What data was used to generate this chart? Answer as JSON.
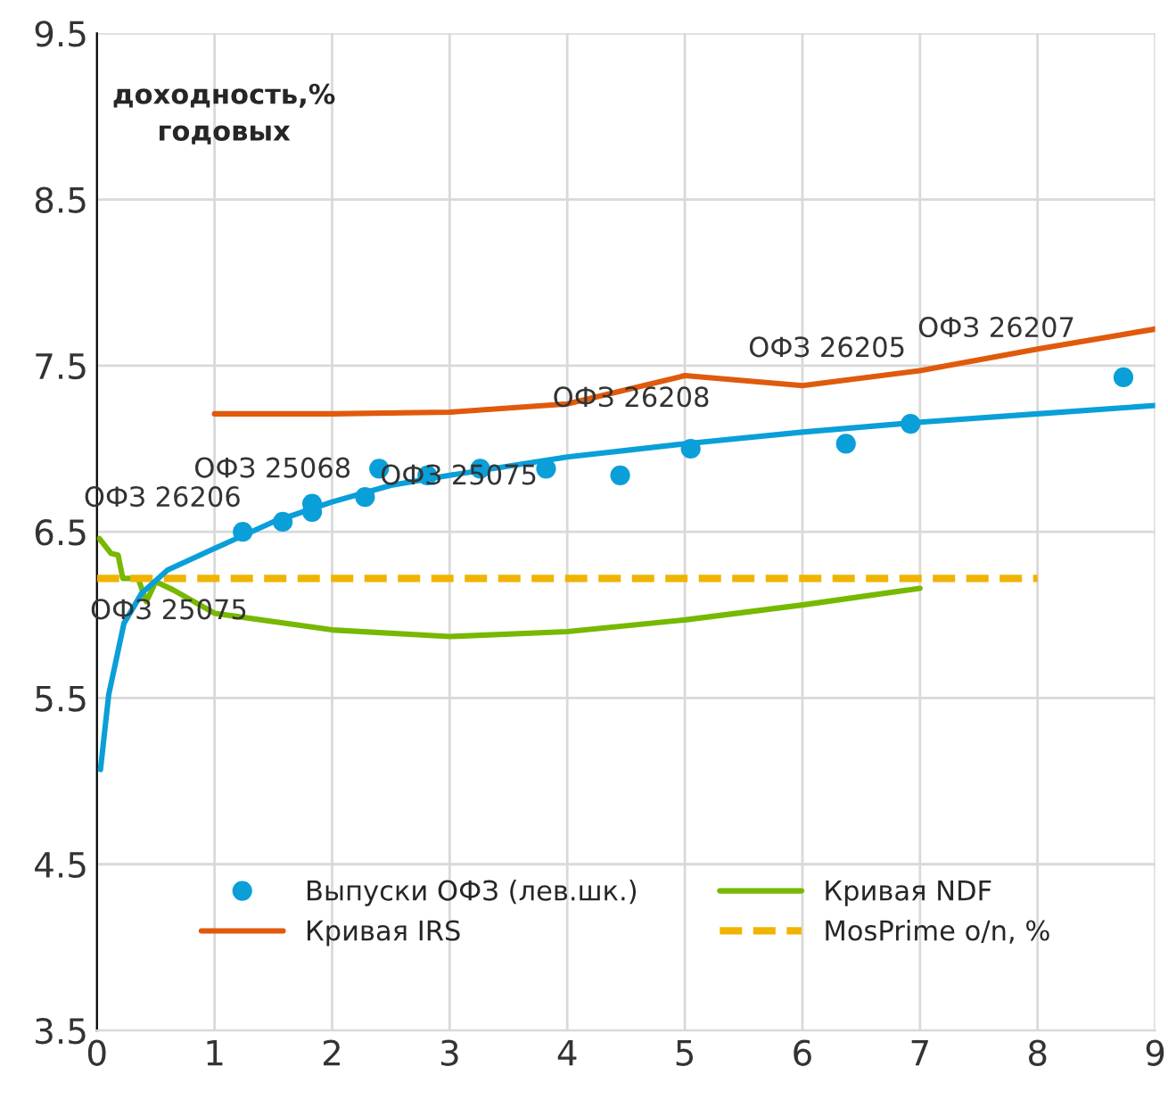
{
  "chart_data": {
    "type": "line",
    "xlim": [
      0,
      9
    ],
    "xticks": [
      0,
      1,
      2,
      3,
      4,
      5,
      6,
      7,
      8,
      9
    ],
    "ylim": [
      3.5,
      9.5
    ],
    "yticks": [
      3.5,
      4.5,
      5.5,
      6.5,
      7.5,
      8.5,
      9.5
    ],
    "grid": true,
    "legend": "bottom",
    "series": [
      {
        "name": "Выпуски ОФЗ (лев.шк.)",
        "type": "scatter",
        "marker": "circle",
        "color": "#0a9fd8",
        "x": [
          1.24,
          1.58,
          1.83,
          1.83,
          2.28,
          2.4,
          2.81,
          3.26,
          3.82,
          4.45,
          5.05,
          6.37,
          6.92,
          8.73
        ],
        "values": [
          6.5,
          6.56,
          6.67,
          6.62,
          6.71,
          6.88,
          6.84,
          6.88,
          6.88,
          6.84,
          7.0,
          7.03,
          7.15,
          7.43
        ]
      },
      {
        "name": "Кривая IRS",
        "type": "line",
        "color": "#e05a0c",
        "x": [
          1,
          2,
          3,
          4,
          5,
          6,
          7,
          8,
          9
        ],
        "values": [
          7.21,
          7.21,
          7.22,
          7.27,
          7.44,
          7.38,
          7.47,
          7.6,
          7.72
        ]
      },
      {
        "name": "Кривая NDF",
        "type": "line",
        "color": "#77b800",
        "x": [
          0.02,
          0.12,
          0.18,
          0.22,
          0.35,
          0.42,
          0.5,
          0.65,
          1,
          2,
          3,
          4,
          5,
          6,
          7
        ],
        "values": [
          6.46,
          6.37,
          6.36,
          6.22,
          6.22,
          6.08,
          6.2,
          6.15,
          6.01,
          5.91,
          5.87,
          5.9,
          5.97,
          6.06,
          6.16
        ]
      },
      {
        "name": "MosPrime o/n, %",
        "type": "line",
        "line_style": "dashed",
        "color": "#f0b400",
        "x": [
          0,
          8
        ],
        "values": [
          6.22,
          6.22
        ]
      },
      {
        "color": "#0a9fd8",
        "x": [
          0.03,
          0.1,
          0.23,
          0.38,
          0.6,
          1,
          1.5,
          2,
          2.5,
          3,
          4,
          5,
          6,
          7,
          8,
          9
        ],
        "values": [
          5.07,
          5.52,
          5.95,
          6.13,
          6.27,
          6.4,
          6.56,
          6.68,
          6.78,
          6.84,
          6.95,
          7.03,
          7.1,
          7.16,
          7.21,
          7.26
        ]
      }
    ],
    "annotations": [
      "доходность,%\nгодовых",
      "ОФЗ 26206",
      "ОФЗ 25068",
      "ОФЗ 25075",
      "ОФЗ 25075",
      "ОФЗ 26208",
      "ОФЗ 26205",
      "ОФЗ 26207"
    ]
  }
}
